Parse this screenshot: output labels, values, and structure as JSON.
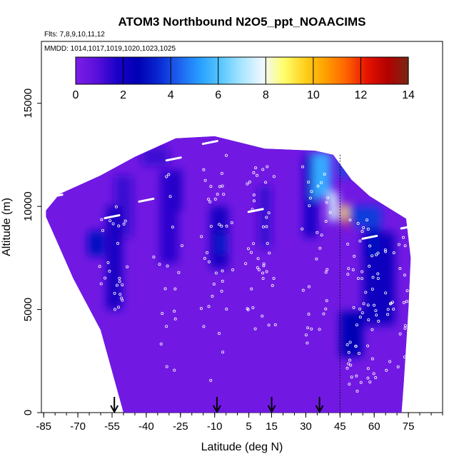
{
  "header": {
    "title": "ATOM3 Northbound N2O5_ppt_NOAACIMS",
    "flights": "Flts: 7,8,9,10,11,12",
    "dates": "MMDD: 1014,1017,1019,1020,1023,1025"
  },
  "chart_data": {
    "type": "heatmap",
    "title": "ATOM3 Northbound N2O5_ppt_NOAACIMS",
    "xlabel": "Latitude (deg N)",
    "ylabel": "Altitude (m)",
    "xlim": [
      -86,
      90
    ],
    "ylim": [
      0,
      18000
    ],
    "x_ticks": [
      -85,
      -70,
      -55,
      -40,
      -25,
      -10,
      5,
      15,
      30,
      45,
      60,
      75
    ],
    "x_tick_labels": [
      "-85",
      "-70",
      "-55",
      "-40",
      "-25",
      "-10",
      "5",
      "15",
      "30",
      "45",
      "60",
      "75"
    ],
    "y_ticks": [
      0,
      5000,
      10000,
      15000
    ],
    "y_tick_labels": [
      "0",
      "5000",
      "10000",
      "15000"
    ],
    "colorbar": {
      "min": 0,
      "max": 14,
      "ticks": [
        0,
        2,
        4,
        6,
        8,
        10,
        12,
        14
      ],
      "tick_labels": [
        "0",
        "2",
        "4",
        "6",
        "8",
        "10",
        "12",
        "14"
      ],
      "colors": [
        "#7d1ee6",
        "#5a10dc",
        "#1a00c8",
        "#0000b4",
        "#0a28d2",
        "#1e64f0",
        "#28a0ff",
        "#5ac8ff",
        "#aae6ff",
        "#f0f8ff",
        "#ffff6e",
        "#ffd21e",
        "#ffa000",
        "#ff6400",
        "#e61400",
        "#b40000",
        "#782814"
      ]
    },
    "coverage_outline": [
      [
        -84,
        9800
      ],
      [
        -78,
        10600
      ],
      [
        -60,
        11500
      ],
      [
        -45,
        12400
      ],
      [
        -27,
        13300
      ],
      [
        -10,
        13400
      ],
      [
        12,
        12800
      ],
      [
        34,
        12700
      ],
      [
        42,
        12500
      ],
      [
        50,
        11300
      ],
      [
        58,
        10500
      ],
      [
        74,
        9400
      ],
      [
        76,
        7500
      ],
      [
        75,
        5000
      ],
      [
        73,
        1500
      ],
      [
        72,
        0
      ],
      [
        -50,
        0
      ],
      [
        -60,
        4000
      ],
      [
        -72,
        6500
      ],
      [
        -80,
        8500
      ],
      [
        -84,
        9500
      ]
    ],
    "features": [
      {
        "lat": 37,
        "alt": 11500,
        "value": 5.5,
        "lat_width": 8,
        "alt_width": 2200
      },
      {
        "lat": 42,
        "alt": 10000,
        "value": 7.5,
        "lat_width": 4,
        "alt_width": 1400
      },
      {
        "lat": 48,
        "alt": 9200,
        "value": 12.5,
        "lat_width": 2,
        "alt_width": 500
      },
      {
        "lat": 47,
        "alt": 9700,
        "value": 9.5,
        "lat_width": 3,
        "alt_width": 800
      },
      {
        "lat": 55,
        "alt": 9500,
        "value": 3.8,
        "lat_width": 16,
        "alt_width": 1000
      },
      {
        "lat": 47,
        "alt": 12000,
        "value": 4.0,
        "lat_width": 5,
        "alt_width": 1200
      },
      {
        "lat": 62,
        "alt": 6500,
        "value": 2.2,
        "lat_width": 14,
        "alt_width": 4500
      },
      {
        "lat": 60,
        "alt": 8300,
        "value": 3.0,
        "lat_width": 5,
        "alt_width": 1400
      },
      {
        "lat": 50,
        "alt": 3800,
        "value": 2.6,
        "lat_width": 10,
        "alt_width": 2200
      },
      {
        "lat": -54,
        "alt": 7500,
        "value": 2.0,
        "lat_width": 7,
        "alt_width": 5000
      },
      {
        "lat": -62,
        "alt": 8200,
        "value": 3.0,
        "lat_width": 7,
        "alt_width": 1200
      },
      {
        "lat": -50,
        "alt": 10000,
        "value": 1.3,
        "lat_width": 8,
        "alt_width": 3000
      },
      {
        "lat": -30,
        "alt": 9500,
        "value": 1.5,
        "lat_width": 8,
        "alt_width": 4500
      },
      {
        "lat": -26,
        "alt": 10800,
        "value": 2.0,
        "lat_width": 3,
        "alt_width": 2000
      },
      {
        "lat": -8,
        "alt": 8500,
        "value": 2.0,
        "lat_width": 8,
        "alt_width": 3000
      },
      {
        "lat": -7,
        "alt": 8200,
        "value": 3.2,
        "lat_width": 4,
        "alt_width": 1000
      },
      {
        "lat": 12,
        "alt": 9500,
        "value": 1.3,
        "lat_width": 6,
        "alt_width": 3000
      },
      {
        "lat": 32,
        "alt": 10500,
        "value": 1.8,
        "lat_width": 6,
        "alt_width": 4000
      },
      {
        "lat": -36,
        "alt": 12400,
        "value": 1.3,
        "lat_width": 12,
        "alt_width": 900
      }
    ],
    "flight_track_marks": [
      {
        "lat": -80,
        "alt": 10500
      },
      {
        "lat": -68,
        "alt": 11300
      },
      {
        "lat": -55,
        "alt": 9500
      },
      {
        "lat": -40,
        "alt": 10300
      },
      {
        "lat": -28,
        "alt": 12300
      },
      {
        "lat": -12,
        "alt": 13100
      },
      {
        "lat": 8,
        "alt": 9800
      },
      {
        "lat": 58,
        "alt": 8500
      },
      {
        "lat": 75,
        "alt": 9000
      }
    ],
    "markers_lat": [
      -54,
      -9,
      15,
      36
    ],
    "marker_top_lat": 45
  }
}
